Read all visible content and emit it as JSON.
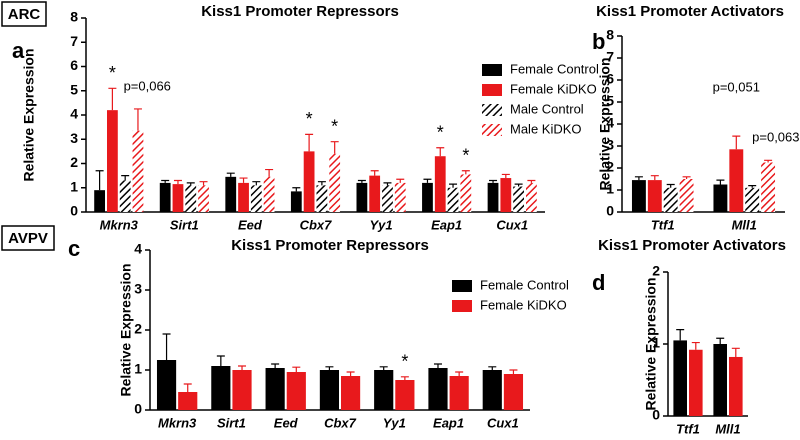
{
  "labels": {
    "region_top": "ARC",
    "region_bottom": "AVPV",
    "panel_a": "a",
    "panel_b": "b",
    "panel_c": "c",
    "panel_d": "d"
  },
  "chart_data": [
    {
      "type": "bar",
      "title": "Kiss1 Promoter Repressors",
      "y_label": "Relative Expression",
      "categories": [
        "Mkrn3",
        "Sirt1",
        "Eed",
        "Cbx7",
        "Yy1",
        "Eap1",
        "Cux1"
      ],
      "series": [
        {
          "name": "Female Control",
          "color": "#000000",
          "hatch": false,
          "values": [
            0.9,
            1.2,
            1.45,
            0.85,
            1.2,
            1.2,
            1.2
          ],
          "errors": [
            0.8,
            0.1,
            0.15,
            0.15,
            0.1,
            0.15,
            0.1
          ]
        },
        {
          "name": "Female KiDKO",
          "color": "#e8191c",
          "hatch": false,
          "values": [
            4.2,
            1.15,
            1.2,
            2.5,
            1.5,
            2.3,
            1.4
          ],
          "errors": [
            0.9,
            0.15,
            0.2,
            0.7,
            0.2,
            0.35,
            0.15
          ]
        },
        {
          "name": "Male Control",
          "color": "#000000",
          "hatch": true,
          "values": [
            1.3,
            1.1,
            1.1,
            1.1,
            1.1,
            1.0,
            1.05
          ],
          "errors": [
            0.2,
            0.1,
            0.15,
            0.15,
            0.1,
            0.15,
            0.1
          ]
        },
        {
          "name": "Male KiDKO",
          "color": "#e8191c",
          "hatch": true,
          "values": [
            3.35,
            1.1,
            1.45,
            2.4,
            1.2,
            1.55,
            1.2
          ],
          "errors": [
            0.9,
            0.15,
            0.3,
            0.5,
            0.15,
            0.15,
            0.1
          ]
        }
      ],
      "ylim": [
        0,
        8
      ],
      "yticks": [
        0,
        1,
        2,
        3,
        4,
        5,
        6,
        7,
        8
      ],
      "legend": true,
      "annotations": [
        "*",
        "p=0,066",
        "*",
        "*",
        "*",
        "*"
      ]
    },
    {
      "type": "bar",
      "title": "Kiss1 Promoter Activators",
      "y_label": "Relative Expression",
      "categories": [
        "Ttf1",
        "Mll1"
      ],
      "series": [
        {
          "name": "Female Control",
          "color": "#000000",
          "hatch": false,
          "values": [
            1.45,
            1.25
          ],
          "errors": [
            0.15,
            0.2
          ]
        },
        {
          "name": "Female KiDKO",
          "color": "#e8191c",
          "hatch": false,
          "values": [
            1.45,
            2.85
          ],
          "errors": [
            0.2,
            0.6
          ]
        },
        {
          "name": "Male Control",
          "color": "#000000",
          "hatch": true,
          "values": [
            1.1,
            1.1
          ],
          "errors": [
            0.15,
            0.1
          ]
        },
        {
          "name": "Male KiDKO",
          "color": "#e8191c",
          "hatch": true,
          "values": [
            1.5,
            2.25
          ],
          "errors": [
            0.1,
            0.1
          ]
        }
      ],
      "ylim": [
        0,
        8
      ],
      "yticks": [
        0,
        1,
        2,
        3,
        4,
        5,
        6,
        7,
        8
      ],
      "legend": false,
      "annotations": [
        "p=0,051",
        "p=0,063"
      ]
    },
    {
      "type": "bar",
      "title": "Kiss1 Promoter Repressors",
      "y_label": "Relative Expression",
      "categories": [
        "Mkrn3",
        "Sirt1",
        "Eed",
        "Cbx7",
        "Yy1",
        "Eap1",
        "Cux1"
      ],
      "series": [
        {
          "name": "Female Control",
          "color": "#000000",
          "hatch": false,
          "values": [
            1.25,
            1.1,
            1.05,
            1.0,
            1.0,
            1.05,
            1.0
          ],
          "errors": [
            0.65,
            0.25,
            0.1,
            0.08,
            0.08,
            0.1,
            0.08
          ]
        },
        {
          "name": "Female KiDKO",
          "color": "#e8191c",
          "hatch": false,
          "values": [
            0.45,
            1.0,
            0.95,
            0.85,
            0.75,
            0.85,
            0.9
          ],
          "errors": [
            0.2,
            0.1,
            0.12,
            0.1,
            0.08,
            0.1,
            0.1
          ]
        }
      ],
      "ylim": [
        0,
        4
      ],
      "yticks": [
        0,
        1,
        2,
        3,
        4
      ],
      "legend": true,
      "annotations": [
        "*"
      ]
    },
    {
      "type": "bar",
      "title": "Kiss1 Promoter Activators",
      "y_label": "Relative Expression",
      "categories": [
        "Ttf1",
        "Mll1"
      ],
      "series": [
        {
          "name": "Female Control",
          "color": "#000000",
          "hatch": false,
          "values": [
            1.05,
            1.0
          ],
          "errors": [
            0.15,
            0.08
          ]
        },
        {
          "name": "Female KiDKO",
          "color": "#e8191c",
          "hatch": false,
          "values": [
            0.92,
            0.82
          ],
          "errors": [
            0.1,
            0.12
          ]
        }
      ],
      "ylim": [
        0,
        2
      ],
      "yticks": [
        0,
        1,
        2
      ],
      "legend": false,
      "annotations": []
    }
  ]
}
